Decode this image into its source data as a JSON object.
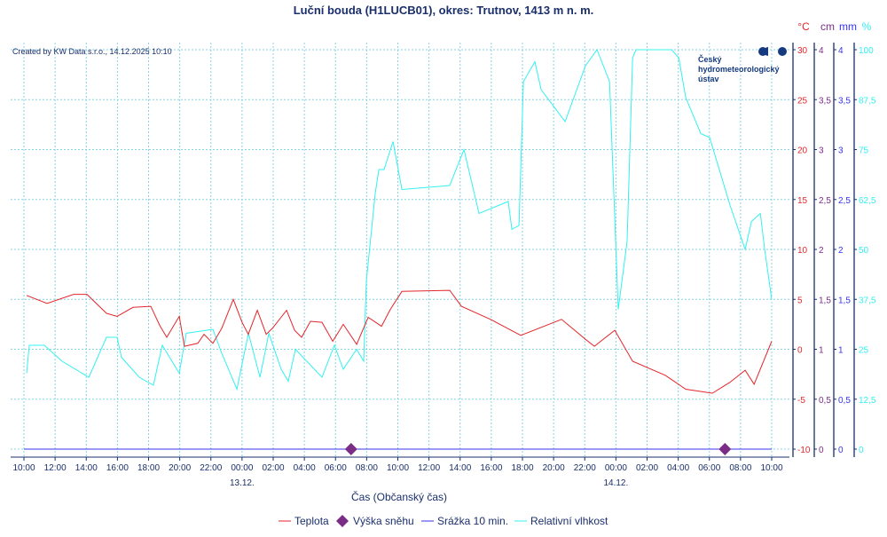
{
  "title": "Luční bouda (H1LUCB01), okres: Trutnov, 1413 m n. m.",
  "credit": "Created by KW Data s.r.o., 14.12.2025 10:10",
  "logo": {
    "line1": "Český",
    "line2": "hydrometeorologický",
    "line3": "ústav"
  },
  "colors": {
    "temp": "#e3262b",
    "snow": "#7b2d86",
    "precip": "#3535ee",
    "humidity": "#33f0f0",
    "axis": "#1a2f6b",
    "grid": "#86d4e2"
  },
  "chart_data": {
    "type": "line",
    "title": "Luční bouda (H1LUCB01), okres: Trutnov, 1413 m n. m.",
    "xlabel": "Čas (Občanský čas)",
    "x_unit": "hours since 12.12. 10:00",
    "xlim": [
      0,
      48
    ],
    "x_ticks": [
      "10:00",
      "12:00",
      "14:00",
      "16:00",
      "18:00",
      "20:00",
      "22:00",
      "00:00",
      "02:00",
      "04:00",
      "06:00",
      "08:00",
      "10:00",
      "12:00",
      "14:00",
      "16:00",
      "18:00",
      "20:00",
      "22:00",
      "00:00",
      "02:00",
      "04:00",
      "06:00",
      "08:00",
      "10:00"
    ],
    "date_labels": [
      {
        "hour": 14,
        "label": "13.12."
      },
      {
        "hour": 38,
        "label": "14.12."
      }
    ],
    "axes": [
      {
        "unit": "°C",
        "min": -10,
        "max": 30,
        "ticks": [
          "30",
          "25",
          "20",
          "15",
          "10",
          "5",
          "0",
          "-5",
          "-10"
        ]
      },
      {
        "unit": "cm",
        "min": 0,
        "max": 4,
        "ticks": [
          "4",
          "3,5",
          "3",
          "2,5",
          "2",
          "1,5",
          "1",
          "0,5",
          "0"
        ]
      },
      {
        "unit": "mm",
        "min": 0,
        "max": 4,
        "ticks": [
          "4",
          "3,5",
          "3",
          "2,5",
          "2",
          "1,5",
          "1",
          "0,5",
          "0"
        ]
      },
      {
        "unit": "%",
        "min": 0,
        "max": 100,
        "ticks": [
          "100",
          "87,5",
          "75",
          "62,5",
          "50",
          "37,5",
          "25",
          "12,5",
          "0"
        ]
      }
    ],
    "grid": true,
    "legend_position": "bottom",
    "series": [
      {
        "name": "Teplota",
        "axis": 0,
        "kind": "line",
        "points": [
          [
            0.17,
            5.4
          ],
          [
            1.48,
            4.6
          ],
          [
            3.19,
            5.5
          ],
          [
            4.04,
            5.5
          ],
          [
            5.3,
            3.6
          ],
          [
            5.98,
            3.3
          ],
          [
            7.0,
            4.2
          ],
          [
            8.14,
            4.3
          ],
          [
            8.71,
            2.4
          ],
          [
            9.17,
            1.2
          ],
          [
            9.97,
            3.3
          ],
          [
            10.3,
            0.3
          ],
          [
            11.16,
            0.6
          ],
          [
            11.56,
            1.5
          ],
          [
            12.13,
            0.6
          ],
          [
            12.7,
            2.1
          ],
          [
            13.44,
            5.0
          ],
          [
            14.0,
            2.7
          ],
          [
            14.4,
            1.5
          ],
          [
            14.98,
            3.9
          ],
          [
            15.55,
            1.5
          ],
          [
            15.95,
            2.1
          ],
          [
            16.86,
            3.9
          ],
          [
            17.37,
            1.9
          ],
          [
            17.82,
            1.2
          ],
          [
            18.39,
            2.8
          ],
          [
            19.13,
            2.7
          ],
          [
            19.82,
            0.8
          ],
          [
            20.5,
            2.5
          ],
          [
            21.36,
            0.5
          ],
          [
            22.1,
            3.2
          ],
          [
            22.95,
            2.3
          ],
          [
            23.52,
            4.0
          ],
          [
            24.26,
            5.8
          ],
          [
            27.33,
            5.9
          ],
          [
            28.08,
            4.3
          ],
          [
            29.95,
            3.0
          ],
          [
            31.89,
            1.4
          ],
          [
            34.51,
            3.0
          ],
          [
            36.05,
            1.0
          ],
          [
            36.62,
            0.3
          ],
          [
            37.93,
            1.9
          ],
          [
            39.07,
            -1.2
          ],
          [
            41.17,
            -2.6
          ],
          [
            42.48,
            -4.0
          ],
          [
            44.19,
            -4.4
          ],
          [
            45.33,
            -3.3
          ],
          [
            46.3,
            -2.1
          ],
          [
            46.87,
            -3.5
          ],
          [
            48.0,
            0.8
          ]
        ]
      },
      {
        "name": "Výška sněhu",
        "axis": 1,
        "kind": "marker",
        "points": [
          [
            21,
            0
          ],
          [
            45,
            0
          ]
        ]
      },
      {
        "name": "Srážka 10 min.",
        "axis": 2,
        "kind": "line",
        "points": [
          [
            0,
            0
          ],
          [
            48,
            0
          ]
        ]
      },
      {
        "name": "Relativní vlhkost",
        "axis": 3,
        "kind": "line",
        "points": [
          [
            0.17,
            19
          ],
          [
            0.34,
            26
          ],
          [
            1.31,
            26
          ],
          [
            2.45,
            22
          ],
          [
            4.16,
            18
          ],
          [
            5.3,
            28
          ],
          [
            5.98,
            28
          ],
          [
            6.26,
            23
          ],
          [
            7.4,
            18
          ],
          [
            8.31,
            16
          ],
          [
            8.88,
            26
          ],
          [
            9.97,
            19
          ],
          [
            10.42,
            29
          ],
          [
            12.13,
            30
          ],
          [
            12.7,
            24
          ],
          [
            13.67,
            15
          ],
          [
            14.41,
            29
          ],
          [
            15.15,
            18
          ],
          [
            15.72,
            29
          ],
          [
            16.51,
            20
          ],
          [
            16.97,
            17
          ],
          [
            17.43,
            25
          ],
          [
            19.13,
            18
          ],
          [
            19.93,
            26
          ],
          [
            20.5,
            20
          ],
          [
            21.36,
            25
          ],
          [
            21.81,
            22
          ],
          [
            21.98,
            42
          ],
          [
            22.55,
            64
          ],
          [
            22.78,
            70
          ],
          [
            23.12,
            70
          ],
          [
            23.69,
            77
          ],
          [
            24.26,
            65
          ],
          [
            27.33,
            66
          ],
          [
            28.25,
            75
          ],
          [
            29.21,
            59
          ],
          [
            31.09,
            62
          ],
          [
            31.32,
            55
          ],
          [
            31.78,
            56
          ],
          [
            32.06,
            92
          ],
          [
            32.8,
            97
          ],
          [
            33.2,
            90
          ],
          [
            34.74,
            82
          ],
          [
            36.05,
            96
          ],
          [
            36.79,
            100
          ],
          [
            37.59,
            92
          ],
          [
            38.15,
            35
          ],
          [
            38.72,
            52
          ],
          [
            39.07,
            98
          ],
          [
            39.29,
            100
          ],
          [
            41.57,
            100
          ],
          [
            42.03,
            98
          ],
          [
            42.48,
            88
          ],
          [
            43.45,
            79
          ],
          [
            44.02,
            78
          ],
          [
            45.33,
            61
          ],
          [
            46.3,
            50
          ],
          [
            46.7,
            57
          ],
          [
            47.27,
            59
          ],
          [
            47.55,
            50
          ],
          [
            48.0,
            37.5
          ]
        ]
      }
    ]
  }
}
